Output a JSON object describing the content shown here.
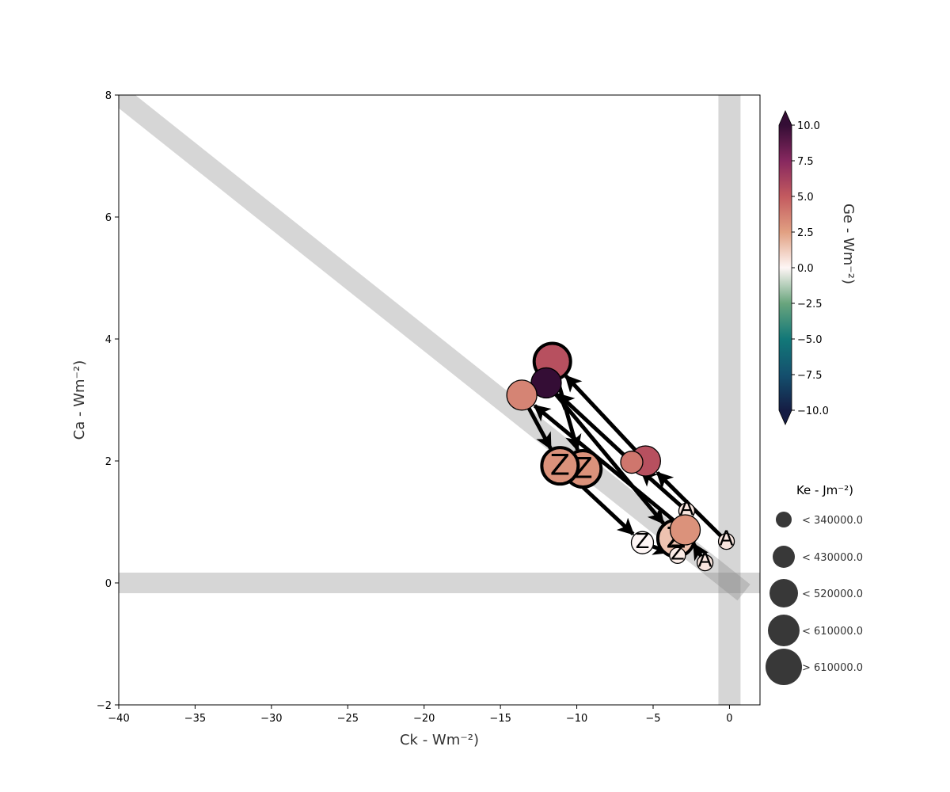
{
  "chart_data": {
    "type": "scatter",
    "xlabel": "Ck - Wm⁻²)",
    "ylabel": "Ca - Wm⁻²)",
    "xlim": [
      -40,
      2
    ],
    "ylim": [
      -2,
      8
    ],
    "x_ticks": [
      -40,
      -35,
      -30,
      -25,
      -20,
      -15,
      -10,
      -5,
      0
    ],
    "y_ticks": [
      -2,
      0,
      2,
      4,
      6,
      8
    ],
    "x_tick_labels": [
      "−40",
      "−35",
      "−30",
      "−25",
      "−20",
      "−15",
      "−10",
      "−5",
      "0"
    ],
    "y_tick_labels": [
      "−2",
      "0",
      "2",
      "4",
      "6",
      "8"
    ],
    "background_bands": [
      {
        "kind": "diagonal",
        "from": [
          -40,
          8
        ],
        "to": [
          0,
          0
        ]
      },
      {
        "kind": "vertical",
        "x": 0
      },
      {
        "kind": "horizontal",
        "y": 0
      }
    ],
    "colorbar": {
      "label": "Ge - Wm⁻²)",
      "range": [
        -10,
        10
      ],
      "ticks": [
        10,
        7.5,
        5,
        2.5,
        0,
        -2.5,
        -5,
        -7.5,
        -10
      ],
      "tick_labels": [
        "10.0",
        "7.5",
        "5.0",
        "2.5",
        "0.0",
        "−2.5",
        "−5.0",
        "−7.5",
        "−10.0"
      ],
      "colormap": "curl",
      "extend": "both"
    },
    "size_legend": {
      "title": "Ke - Jm⁻²)",
      "entries": [
        "< 340000.0",
        "< 430000.0",
        "< 520000.0",
        "< 610000.0",
        "> 610000.0"
      ]
    },
    "series": [
      {
        "points": [
          {
            "x": -0.2,
            "y": 0.68,
            "ge": 0.5,
            "size": 1,
            "label": "A"
          },
          {
            "x": -5.5,
            "y": 2.0,
            "ge": 5.5,
            "size": 3
          },
          {
            "x": -11.6,
            "y": 3.63,
            "ge": 5.5,
            "size": 4,
            "thick": true
          },
          {
            "x": -9.6,
            "y": 1.87,
            "ge": 3.0,
            "size": 4,
            "thick": true,
            "label": "Z"
          }
        ]
      },
      {
        "points": [
          {
            "x": -2.8,
            "y": 1.18,
            "ge": 0.5,
            "size": 1,
            "label": "A"
          },
          {
            "x": -6.4,
            "y": 1.98,
            "ge": 4.0,
            "size": 2
          },
          {
            "x": -12.0,
            "y": 3.28,
            "ge": 10.0,
            "size": 3
          },
          {
            "x": -3.5,
            "y": 0.73,
            "ge": 1.5,
            "size": 4,
            "thick": true,
            "label": "Z"
          }
        ]
      },
      {
        "points": [
          {
            "x": -1.6,
            "y": 0.33,
            "ge": 0.5,
            "size": 1,
            "label": "A"
          },
          {
            "x": -2.9,
            "y": 0.87,
            "ge": 3.0,
            "size": 3
          },
          {
            "x": -13.6,
            "y": 3.08,
            "ge": 3.5,
            "size": 3
          },
          {
            "x": -11.1,
            "y": 1.92,
            "ge": 3.0,
            "size": 4,
            "thick": true,
            "label": "Z"
          },
          {
            "x": -5.7,
            "y": 0.66,
            "ge": 0.0,
            "size": 2,
            "label": "Z"
          },
          {
            "x": -3.4,
            "y": 0.45,
            "ge": 0.3,
            "size": 1,
            "label": "Z"
          }
        ]
      }
    ]
  }
}
